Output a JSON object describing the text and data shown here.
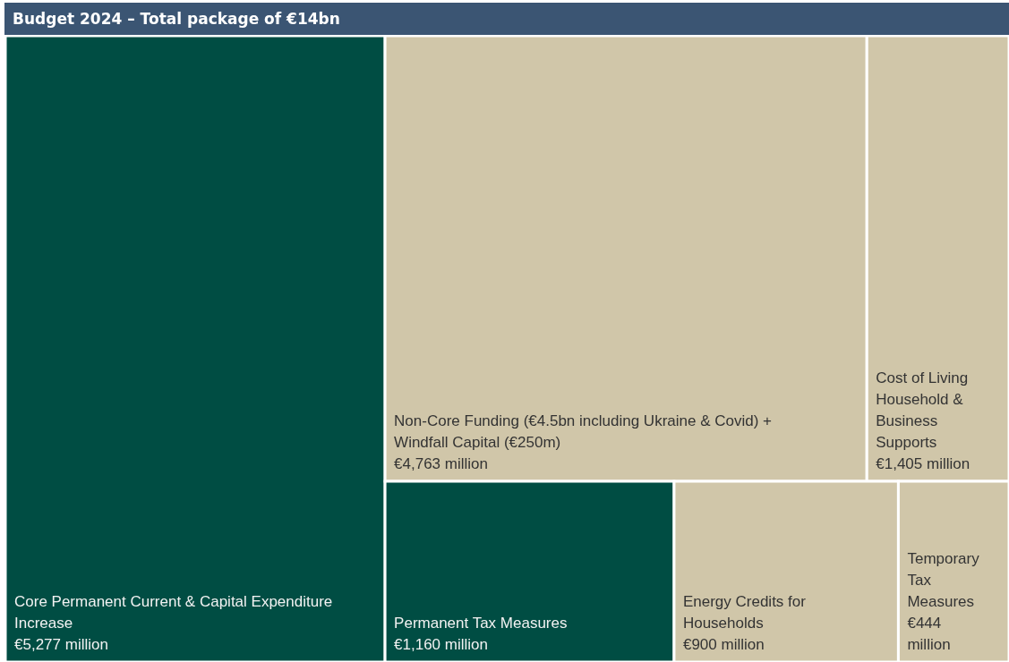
{
  "chart_data": {
    "type": "other",
    "title": "Budget 2024 – Total package of €14bn",
    "categories": [
      "Core Permanent Current & Capital Expenditure Increase",
      "Non-Core Funding (€4.5bn including Ukraine & Covid) + Windfall Capital (€250m)",
      "Cost of Living Household & Business Supports",
      "Permanent Tax Measures",
      "Energy Credits for Households",
      "Temporary Tax Measures"
    ],
    "values": [
      5277,
      4763,
      1405,
      1160,
      900,
      444
    ],
    "value_labels": [
      "€5,277 million",
      "€4,763 million",
      "€1,405 million",
      "€1,160 million",
      "€900 million",
      "€444 million"
    ],
    "colors": [
      "#004d43",
      "#d0c6a9",
      "#d0c6a9",
      "#004d43",
      "#d0c6a9",
      "#d0c6a9"
    ]
  }
}
